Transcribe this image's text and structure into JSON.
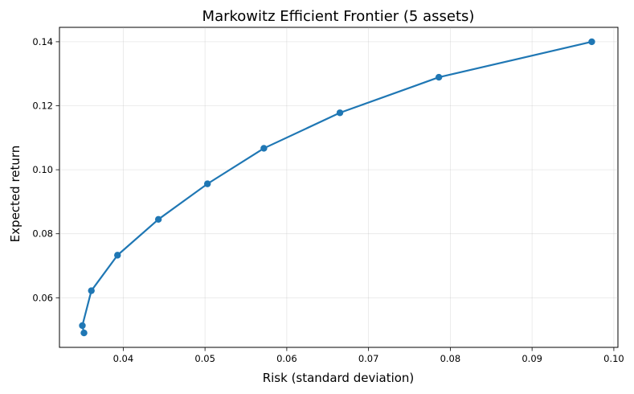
{
  "chart_data": {
    "type": "line",
    "title": "Markowitz Efficient Frontier (5 assets)",
    "xlabel": "Risk (standard deviation)",
    "ylabel": "Expected return",
    "xlim": [
      0.0322,
      0.1005
    ],
    "ylim": [
      0.0445,
      0.1445
    ],
    "xticks": [
      0.04,
      0.05,
      0.06,
      0.07,
      0.08,
      0.09,
      0.1
    ],
    "xtick_labels": [
      "0.04",
      "0.05",
      "0.06",
      "0.07",
      "0.08",
      "0.09",
      "0.10"
    ],
    "yticks": [
      0.06,
      0.08,
      0.1,
      0.12,
      0.14
    ],
    "ytick_labels": [
      "0.06",
      "0.08",
      "0.10",
      "0.12",
      "0.14"
    ],
    "grid": true,
    "color": "#1f77b4",
    "markers": true,
    "series": [
      {
        "x": [
          0.0352,
          0.035,
          0.0361,
          0.0393,
          0.0443,
          0.0503,
          0.0572,
          0.0665,
          0.0786,
          0.0973
        ],
        "y": [
          0.049,
          0.0513,
          0.0622,
          0.0733,
          0.0845,
          0.0956,
          0.1067,
          0.1178,
          0.1289,
          0.14
        ]
      }
    ]
  }
}
